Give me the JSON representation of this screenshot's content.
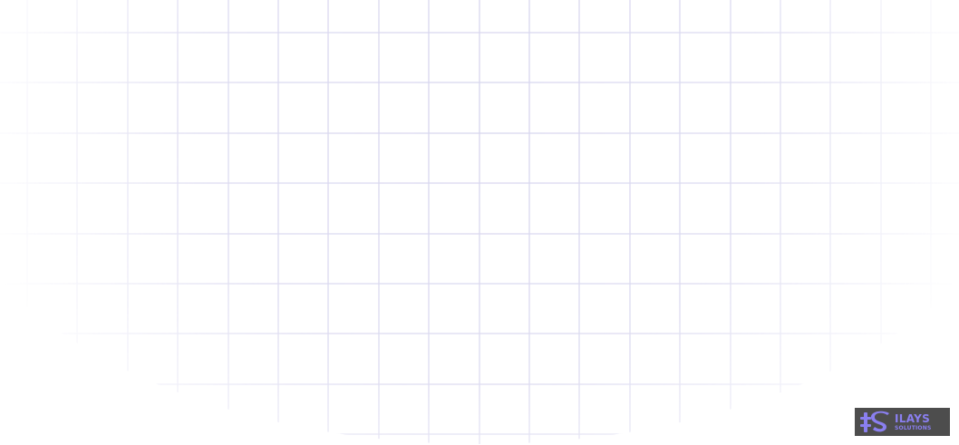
{
  "background": {
    "grid_line_color": "#d7d5ee",
    "page_color": "#ffffff"
  },
  "logo": {
    "brand_text": "ILAYS",
    "sub_text": "SOLUTIONS",
    "monogram": "IS",
    "badge_color": "#4d4d4d",
    "accent_color": "#8a7ff0",
    "icon": "ilays-solutions-logo-icon"
  }
}
